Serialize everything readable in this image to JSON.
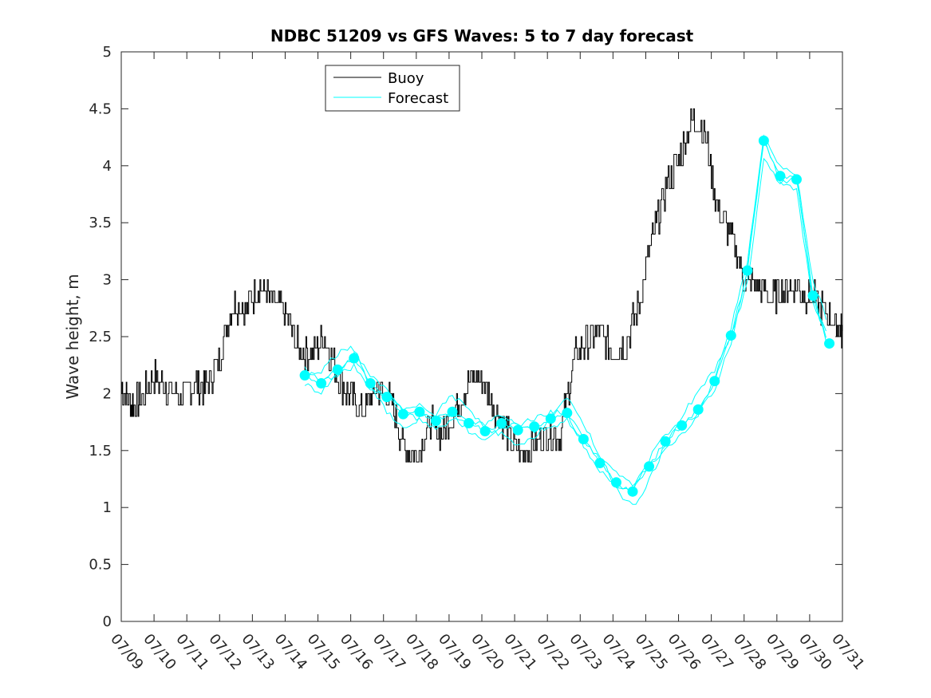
{
  "chart_data": {
    "type": "line",
    "title": "NDBC 51209 vs GFS Waves: 5 to 7 day forecast",
    "xlabel": "",
    "ylabel": "Wave height, m",
    "xlim": [
      "07/09",
      "07/31"
    ],
    "ylim": [
      0,
      5
    ],
    "grid": false,
    "legend_position": "top-left",
    "xticks": [
      "07/09",
      "07/10",
      "07/11",
      "07/12",
      "07/13",
      "07/14",
      "07/15",
      "07/16",
      "07/17",
      "07/18",
      "07/19",
      "07/20",
      "07/21",
      "07/22",
      "07/23",
      "07/24",
      "07/25",
      "07/26",
      "07/27",
      "07/28",
      "07/29",
      "07/30",
      "07/31"
    ],
    "yticks": [
      "0",
      "0.5",
      "1",
      "1.5",
      "2",
      "2.5",
      "3",
      "3.5",
      "4",
      "4.5",
      "5"
    ],
    "colors": {
      "buoy": "#000000",
      "forecast": "#00ffff"
    },
    "series": [
      {
        "name": "Buoy",
        "x_days_from_0709": [
          0,
          0.3,
          0.6,
          1.0,
          1.4,
          1.8,
          2.2,
          2.6,
          3.0,
          3.4,
          3.8,
          4.2,
          4.6,
          5.0,
          5.4,
          5.8,
          6.2,
          6.6,
          7.0,
          7.4,
          7.8,
          8.2,
          8.6,
          9.0,
          9.4,
          9.8,
          10.2,
          10.6,
          11.0,
          11.4,
          11.8,
          12.2,
          12.6,
          13.0,
          13.4,
          13.8,
          14.2,
          14.6,
          15.0,
          15.4,
          15.8,
          16.2,
          16.6,
          17.0,
          17.4,
          17.8,
          18.2,
          18.6,
          19.0,
          19.4,
          19.8,
          20.2,
          20.6,
          21.0,
          21.4,
          21.8,
          22.0
        ],
        "values": [
          2.05,
          1.9,
          1.95,
          2.15,
          2.05,
          1.95,
          2.1,
          2.05,
          2.3,
          2.8,
          2.75,
          2.95,
          2.8,
          2.7,
          2.4,
          2.35,
          2.5,
          2.15,
          1.95,
          1.85,
          2.05,
          1.95,
          1.55,
          1.45,
          1.75,
          1.65,
          1.85,
          2.1,
          2.15,
          1.85,
          1.65,
          1.45,
          1.55,
          1.65,
          1.65,
          2.3,
          2.45,
          2.55,
          2.35,
          2.45,
          2.8,
          3.35,
          3.8,
          4.05,
          4.4,
          4.3,
          3.6,
          3.4,
          3.0,
          2.95,
          2.85,
          2.9,
          2.95,
          2.85,
          2.75,
          2.6,
          2.55
        ]
      },
      {
        "name": "Forecast",
        "x_days_from_0709": [
          5.6,
          6.1,
          6.6,
          7.1,
          7.6,
          8.1,
          8.6,
          9.1,
          9.6,
          10.1,
          10.6,
          11.1,
          11.6,
          12.1,
          12.6,
          13.1,
          13.6,
          14.1,
          14.6,
          15.1,
          15.6,
          16.1,
          16.6,
          17.1,
          17.6,
          18.1,
          18.6,
          19.1,
          19.6,
          20.1,
          20.6,
          21.1,
          21.6
        ],
        "values": [
          2.16,
          2.09,
          2.21,
          2.31,
          2.09,
          1.97,
          1.82,
          1.84,
          1.76,
          1.84,
          1.74,
          1.67,
          1.74,
          1.68,
          1.71,
          1.78,
          1.83,
          1.6,
          1.39,
          1.22,
          1.14,
          1.36,
          1.58,
          1.72,
          1.86,
          2.11,
          2.51,
          3.08,
          4.22,
          3.91,
          3.88,
          2.86,
          2.44
        ]
      }
    ]
  }
}
